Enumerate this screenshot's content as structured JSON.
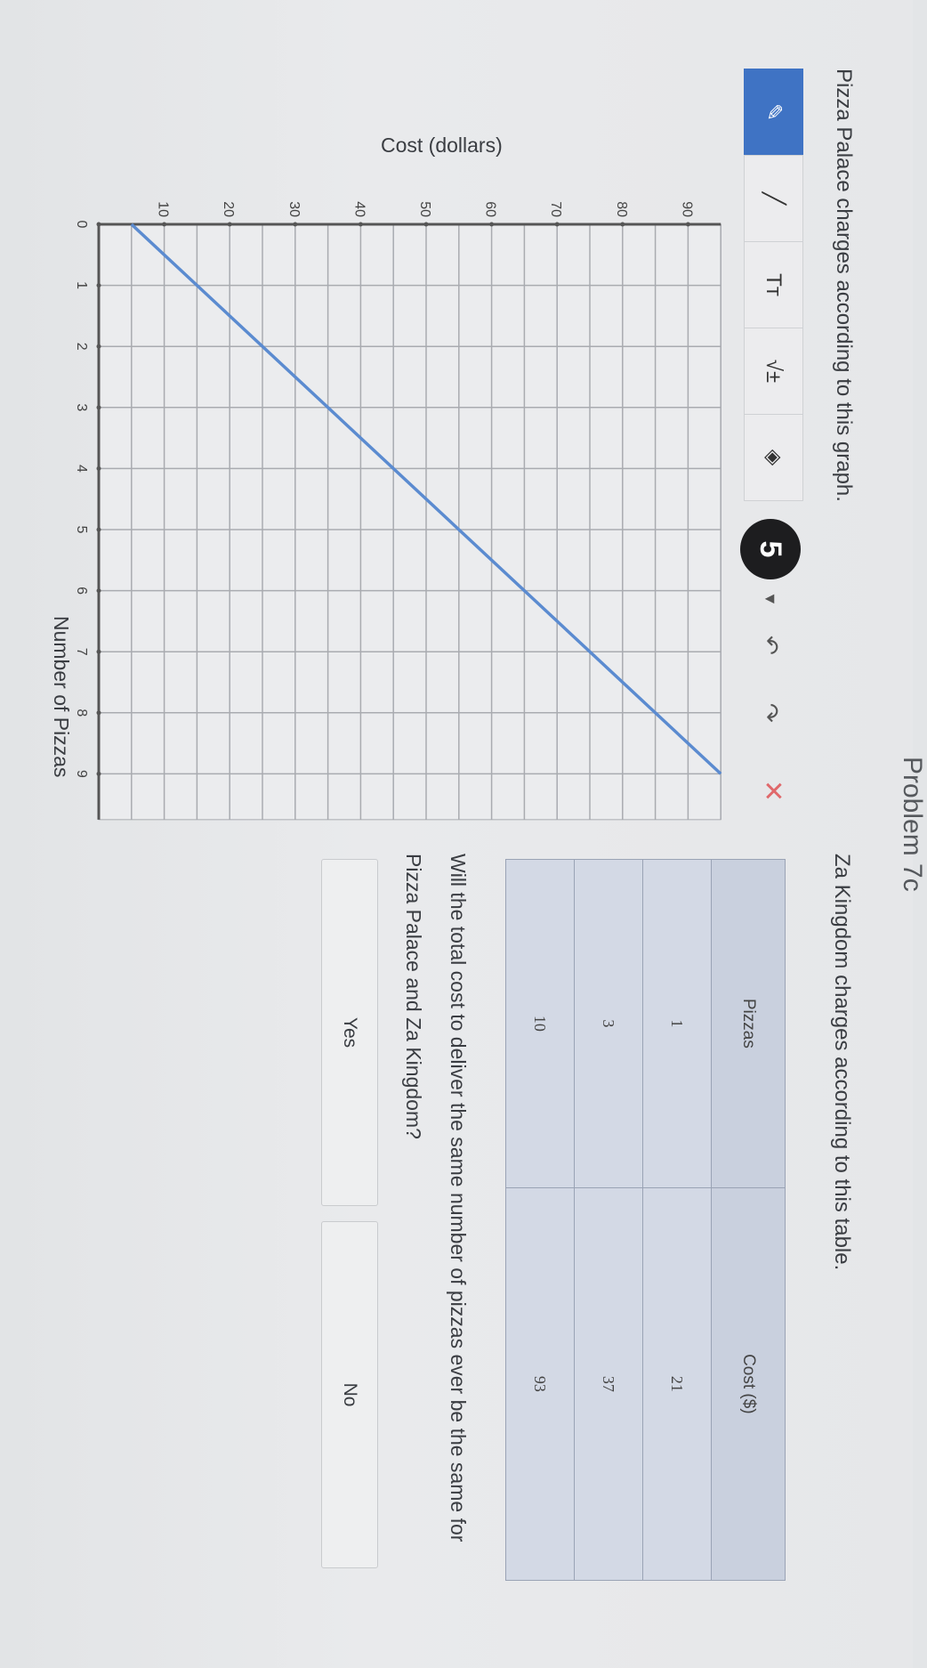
{
  "header": {
    "problem_label": "Problem 7c"
  },
  "left": {
    "prompt": "Pizza Palace charges according to this graph.",
    "toolbar": {
      "tools": [
        {
          "icon": "pencil-icon",
          "glyph": "✎",
          "active": true
        },
        {
          "icon": "line-tool-icon",
          "glyph": "╱",
          "active": false
        },
        {
          "icon": "text-tool-icon",
          "glyph": "Tт",
          "active": false
        },
        {
          "icon": "math-tool-icon",
          "glyph": "√±",
          "active": false
        },
        {
          "icon": "fill-eraser-icon",
          "glyph": "◈",
          "active": false
        }
      ],
      "stroke_size": "5",
      "dropdown_glyph": "▼",
      "undo_glyph": "↶",
      "redo_glyph": "↷",
      "clear_glyph": "✕"
    }
  },
  "chart_data": {
    "type": "line",
    "title": "",
    "xlabel": "Number of Pizzas",
    "ylabel": "Cost (dollars)",
    "xlim": [
      0,
      9.75
    ],
    "ylim": [
      0,
      95
    ],
    "x_ticks": [
      "0",
      "1",
      "2",
      "3",
      "4",
      "5",
      "6",
      "7",
      "8",
      "9"
    ],
    "y_ticks": [
      "10",
      "20",
      "30",
      "40",
      "50",
      "60",
      "70",
      "80",
      "90"
    ],
    "grid": true,
    "series": [
      {
        "x": [
          0,
          9
        ],
        "y": [
          5,
          95
        ],
        "color": "#5b8bd0"
      }
    ]
  },
  "right": {
    "prompt": "Za Kingdom charges according to this table.",
    "table": {
      "headers": [
        "Pizzas",
        "Cost ($)"
      ],
      "rows": [
        [
          "1",
          "21"
        ],
        [
          "3",
          "37"
        ],
        [
          "10",
          "93"
        ]
      ]
    },
    "question": "Will the total cost to deliver the same number of pizzas ever be the same for Pizza Palace and Za Kingdom?",
    "answers": {
      "yes": "Yes",
      "no": "No"
    }
  }
}
